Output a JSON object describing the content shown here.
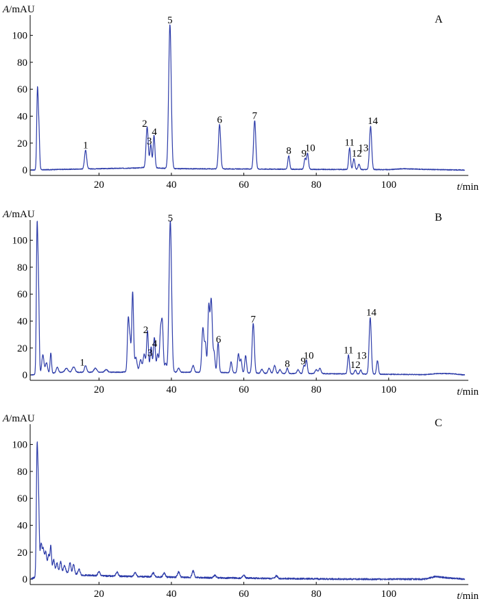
{
  "colors": {
    "trace": "#2b3aa8",
    "axis": "#000000"
  },
  "chart_data": [
    {
      "type": "line",
      "panel_label": "A",
      "ylabel_italic": "A",
      "ylabel_unit": "/mAU",
      "xlabel_italic": "t",
      "xlabel_unit": "/min",
      "xlim": [
        1,
        122
      ],
      "ylim": [
        -4,
        112
      ],
      "x_ticks": [
        20,
        40,
        60,
        80,
        100
      ],
      "y_ticks": [
        0,
        20,
        40,
        60,
        80,
        100
      ],
      "baseline": [
        [
          1,
          0
        ],
        [
          10,
          0.5
        ],
        [
          20,
          1
        ],
        [
          30,
          1.5
        ],
        [
          33,
          2
        ],
        [
          40,
          1
        ],
        [
          60,
          0.8
        ],
        [
          80,
          0.5
        ],
        [
          100,
          0.3
        ],
        [
          104,
          1
        ],
        [
          110,
          0.5
        ],
        [
          121,
          0
        ]
      ],
      "peaks": [
        {
          "x": 3.0,
          "y": 57,
          "w": 0.2
        },
        {
          "x": 3.4,
          "y": 30,
          "w": 0.2
        },
        {
          "x": 16.3,
          "y": 14,
          "w": 0.3
        },
        {
          "x": 33.3,
          "y": 30,
          "w": 0.3
        },
        {
          "x": 34.3,
          "y": 17,
          "w": 0.25
        },
        {
          "x": 35.2,
          "y": 24,
          "w": 0.25
        },
        {
          "x": 39.6,
          "y": 107,
          "w": 0.35
        },
        {
          "x": 53.3,
          "y": 33,
          "w": 0.3
        },
        {
          "x": 63.0,
          "y": 36,
          "w": 0.3
        },
        {
          "x": 72.4,
          "y": 10,
          "w": 0.25
        },
        {
          "x": 76.9,
          "y": 8,
          "w": 0.25
        },
        {
          "x": 77.6,
          "y": 12,
          "w": 0.25
        },
        {
          "x": 89.2,
          "y": 16,
          "w": 0.25
        },
        {
          "x": 90.4,
          "y": 8,
          "w": 0.25
        },
        {
          "x": 91.8,
          "y": 4,
          "w": 0.25
        },
        {
          "x": 95.0,
          "y": 32,
          "w": 0.3
        }
      ],
      "peak_labels": [
        {
          "text": "1",
          "x": 16.3,
          "y": 14
        },
        {
          "text": "2",
          "x": 32.6,
          "y": 30
        },
        {
          "text": "3",
          "x": 33.9,
          "y": 17
        },
        {
          "text": "4",
          "x": 35.3,
          "y": 24
        },
        {
          "text": "5",
          "x": 39.6,
          "y": 107
        },
        {
          "text": "6",
          "x": 53.3,
          "y": 33
        },
        {
          "text": "7",
          "x": 63.0,
          "y": 36
        },
        {
          "text": "8",
          "x": 72.4,
          "y": 10
        },
        {
          "text": "9",
          "x": 76.6,
          "y": 8
        },
        {
          "text": "10",
          "x": 78.3,
          "y": 12
        },
        {
          "text": "11",
          "x": 89.2,
          "y": 16
        },
        {
          "text": "12",
          "x": 91.2,
          "y": 8
        },
        {
          "text": "13",
          "x": 93.0,
          "y": 12
        },
        {
          "text": "14",
          "x": 95.6,
          "y": 32
        }
      ]
    },
    {
      "type": "line",
      "panel_label": "B",
      "ylabel_italic": "A",
      "ylabel_unit": "/mAU",
      "xlabel_italic": "t",
      "xlabel_unit": "/min",
      "xlim": [
        1,
        122
      ],
      "ylim": [
        -4,
        112
      ],
      "x_ticks": [
        20,
        40,
        60,
        80,
        100
      ],
      "y_ticks": [
        0,
        20,
        40,
        60,
        80,
        100
      ],
      "baseline": [
        [
          1,
          0
        ],
        [
          5,
          1
        ],
        [
          10,
          2
        ],
        [
          20,
          2
        ],
        [
          26,
          2
        ],
        [
          30,
          3
        ],
        [
          35,
          4
        ],
        [
          40,
          2
        ],
        [
          50,
          2
        ],
        [
          60,
          1.5
        ],
        [
          70,
          1
        ],
        [
          80,
          1
        ],
        [
          100,
          0.5
        ],
        [
          110,
          0.2
        ],
        [
          113,
          1
        ],
        [
          117,
          1
        ],
        [
          121,
          0
        ]
      ],
      "peaks": [
        {
          "x": 2.9,
          "y": 104,
          "w": 0.2
        },
        {
          "x": 3.3,
          "y": 60,
          "w": 0.2
        },
        {
          "x": 4.5,
          "y": 14,
          "w": 0.3
        },
        {
          "x": 5.5,
          "y": 8,
          "w": 0.3
        },
        {
          "x": 6.7,
          "y": 15,
          "w": 0.2
        },
        {
          "x": 8.5,
          "y": 4,
          "w": 0.3
        },
        {
          "x": 11,
          "y": 3,
          "w": 0.4
        },
        {
          "x": 13,
          "y": 4,
          "w": 0.4
        },
        {
          "x": 16.3,
          "y": 5,
          "w": 0.3
        },
        {
          "x": 19,
          "y": 3,
          "w": 0.4
        },
        {
          "x": 22,
          "y": 2,
          "w": 0.4
        },
        {
          "x": 28.1,
          "y": 40,
          "w": 0.25
        },
        {
          "x": 28.6,
          "y": 20,
          "w": 0.2
        },
        {
          "x": 29.3,
          "y": 59,
          "w": 0.25
        },
        {
          "x": 30.2,
          "y": 10,
          "w": 0.3
        },
        {
          "x": 31.5,
          "y": 8,
          "w": 0.3
        },
        {
          "x": 32.5,
          "y": 12,
          "w": 0.3
        },
        {
          "x": 33.4,
          "y": 29,
          "w": 0.25
        },
        {
          "x": 34.4,
          "y": 17,
          "w": 0.25
        },
        {
          "x": 35.3,
          "y": 24,
          "w": 0.25
        },
        {
          "x": 36.2,
          "y": 12,
          "w": 0.25
        },
        {
          "x": 37.0,
          "y": 28,
          "w": 0.25
        },
        {
          "x": 37.5,
          "y": 34,
          "w": 0.25
        },
        {
          "x": 38.4,
          "y": 6,
          "w": 0.25
        },
        {
          "x": 39.7,
          "y": 112,
          "w": 0.35
        },
        {
          "x": 42,
          "y": 3,
          "w": 0.3
        },
        {
          "x": 46,
          "y": 5,
          "w": 0.3
        },
        {
          "x": 48.7,
          "y": 33,
          "w": 0.3
        },
        {
          "x": 49.4,
          "y": 20,
          "w": 0.25
        },
        {
          "x": 50.3,
          "y": 47,
          "w": 0.25
        },
        {
          "x": 51.0,
          "y": 54,
          "w": 0.3
        },
        {
          "x": 51.8,
          "y": 14,
          "w": 0.25
        },
        {
          "x": 52.9,
          "y": 22,
          "w": 0.25
        },
        {
          "x": 56.5,
          "y": 8,
          "w": 0.25
        },
        {
          "x": 58.5,
          "y": 14,
          "w": 0.25
        },
        {
          "x": 59.2,
          "y": 10,
          "w": 0.25
        },
        {
          "x": 60.5,
          "y": 13,
          "w": 0.25
        },
        {
          "x": 62.6,
          "y": 37,
          "w": 0.3
        },
        {
          "x": 65,
          "y": 3,
          "w": 0.3
        },
        {
          "x": 67,
          "y": 4,
          "w": 0.3
        },
        {
          "x": 68.5,
          "y": 6,
          "w": 0.3
        },
        {
          "x": 70,
          "y": 3,
          "w": 0.3
        },
        {
          "x": 72.0,
          "y": 4,
          "w": 0.25
        },
        {
          "x": 75,
          "y": 3,
          "w": 0.3
        },
        {
          "x": 76.6,
          "y": 6,
          "w": 0.25
        },
        {
          "x": 77.3,
          "y": 10,
          "w": 0.25
        },
        {
          "x": 80,
          "y": 3,
          "w": 0.3
        },
        {
          "x": 81,
          "y": 4,
          "w": 0.3
        },
        {
          "x": 88.9,
          "y": 14,
          "w": 0.25
        },
        {
          "x": 90.8,
          "y": 3,
          "w": 0.25
        },
        {
          "x": 92.3,
          "y": 3,
          "w": 0.25
        },
        {
          "x": 94.9,
          "y": 42,
          "w": 0.3
        },
        {
          "x": 96.9,
          "y": 10,
          "w": 0.25
        }
      ],
      "peak_labels": [
        {
          "text": "1",
          "x": 15.4,
          "y": 5
        },
        {
          "text": "2",
          "x": 32.9,
          "y": 29
        },
        {
          "text": "3",
          "x": 34.1,
          "y": 12
        },
        {
          "text": "4",
          "x": 35.4,
          "y": 19
        },
        {
          "text": "5",
          "x": 39.7,
          "y": 112
        },
        {
          "text": "6",
          "x": 53.0,
          "y": 22
        },
        {
          "text": "7",
          "x": 62.6,
          "y": 37
        },
        {
          "text": "8",
          "x": 72.0,
          "y": 4
        },
        {
          "text": "9",
          "x": 76.4,
          "y": 6
        },
        {
          "text": "10",
          "x": 77.9,
          "y": 10
        },
        {
          "text": "11",
          "x": 88.9,
          "y": 14
        },
        {
          "text": "12",
          "x": 90.8,
          "y": 3
        },
        {
          "text": "13",
          "x": 92.5,
          "y": 10
        },
        {
          "text": "14",
          "x": 95.2,
          "y": 42
        }
      ]
    },
    {
      "type": "line",
      "panel_label": "C",
      "ylabel_italic": "A",
      "ylabel_unit": "/mAU",
      "xlabel_italic": "t",
      "xlabel_unit": "/min",
      "xlim": [
        1,
        122
      ],
      "ylim": [
        -4,
        112
      ],
      "x_ticks": [
        20,
        40,
        60,
        80,
        100
      ],
      "y_ticks": [
        0,
        20,
        40,
        60,
        80,
        100
      ],
      "baseline": [
        [
          1,
          0
        ],
        [
          3,
          2
        ],
        [
          5,
          8
        ],
        [
          8,
          5
        ],
        [
          10,
          5
        ],
        [
          13,
          4
        ],
        [
          15,
          3
        ],
        [
          20,
          2.5
        ],
        [
          30,
          2
        ],
        [
          40,
          1.5
        ],
        [
          50,
          1
        ],
        [
          60,
          0.8
        ],
        [
          70,
          0.5
        ],
        [
          80,
          0.2
        ],
        [
          90,
          0
        ],
        [
          100,
          0
        ],
        [
          110,
          0
        ],
        [
          113,
          2
        ],
        [
          116,
          1
        ],
        [
          121,
          0
        ]
      ],
      "peaks": [
        {
          "x": 2.9,
          "y": 91,
          "w": 0.2
        },
        {
          "x": 3.3,
          "y": 55,
          "w": 0.2
        },
        {
          "x": 4.0,
          "y": 21,
          "w": 0.25
        },
        {
          "x": 4.6,
          "y": 15,
          "w": 0.25
        },
        {
          "x": 5.3,
          "y": 13,
          "w": 0.25
        },
        {
          "x": 6.1,
          "y": 11,
          "w": 0.25
        },
        {
          "x": 6.7,
          "y": 18,
          "w": 0.2
        },
        {
          "x": 7.5,
          "y": 9,
          "w": 0.25
        },
        {
          "x": 8.4,
          "y": 7,
          "w": 0.25
        },
        {
          "x": 9.4,
          "y": 8,
          "w": 0.25
        },
        {
          "x": 10.5,
          "y": 5,
          "w": 0.3
        },
        {
          "x": 12.0,
          "y": 8,
          "w": 0.25
        },
        {
          "x": 13.0,
          "y": 7,
          "w": 0.25
        },
        {
          "x": 14.5,
          "y": 4,
          "w": 0.3
        },
        {
          "x": 20,
          "y": 3,
          "w": 0.3
        },
        {
          "x": 25,
          "y": 3,
          "w": 0.3
        },
        {
          "x": 30,
          "y": 3,
          "w": 0.3
        },
        {
          "x": 35,
          "y": 3,
          "w": 0.3
        },
        {
          "x": 38,
          "y": 3,
          "w": 0.3
        },
        {
          "x": 42,
          "y": 4,
          "w": 0.3
        },
        {
          "x": 46,
          "y": 5,
          "w": 0.3
        },
        {
          "x": 52,
          "y": 2,
          "w": 0.3
        },
        {
          "x": 60,
          "y": 2,
          "w": 0.3
        },
        {
          "x": 69,
          "y": 2,
          "w": 0.3
        }
      ],
      "peak_labels": []
    }
  ]
}
